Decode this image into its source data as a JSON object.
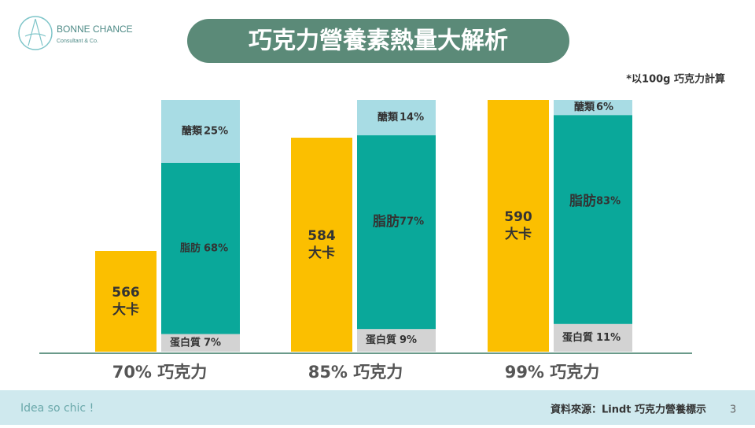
{
  "logo": {
    "name": "BONNE CHANCE",
    "sub": "Consultant & Co."
  },
  "footer": {
    "tagline": "Idea so chic !",
    "source": "資料來源：Lindt 巧克力營養標示",
    "page": "3"
  },
  "chart_data": {
    "type": "bar",
    "title": "巧克力營養素熱量大解析",
    "note": "*以100g 巧克力計算",
    "categories": [
      "70% 巧克力",
      "85% 巧克力",
      "99% 巧克力"
    ],
    "calories": {
      "unit": "大卡",
      "color": "#fbbf00",
      "values": [
        566,
        584,
        590
      ],
      "ylim": [
        550,
        590
      ]
    },
    "ylim": [
      0,
      100
    ],
    "series": [
      {
        "name": "蛋白質",
        "color": "#d3d3d3",
        "values": [
          7,
          9,
          11
        ],
        "value_labels": [
          "7%",
          "9%",
          "11%"
        ]
      },
      {
        "name": "脂肪",
        "color": "#0aa89a",
        "values": [
          68,
          77,
          83
        ],
        "value_labels": [
          "68%",
          "77%",
          "83%"
        ]
      },
      {
        "name": "醣類",
        "color": "#a8dce4",
        "values": [
          25,
          14,
          6
        ],
        "value_labels": [
          "25%",
          "14%",
          "6%"
        ]
      }
    ]
  }
}
